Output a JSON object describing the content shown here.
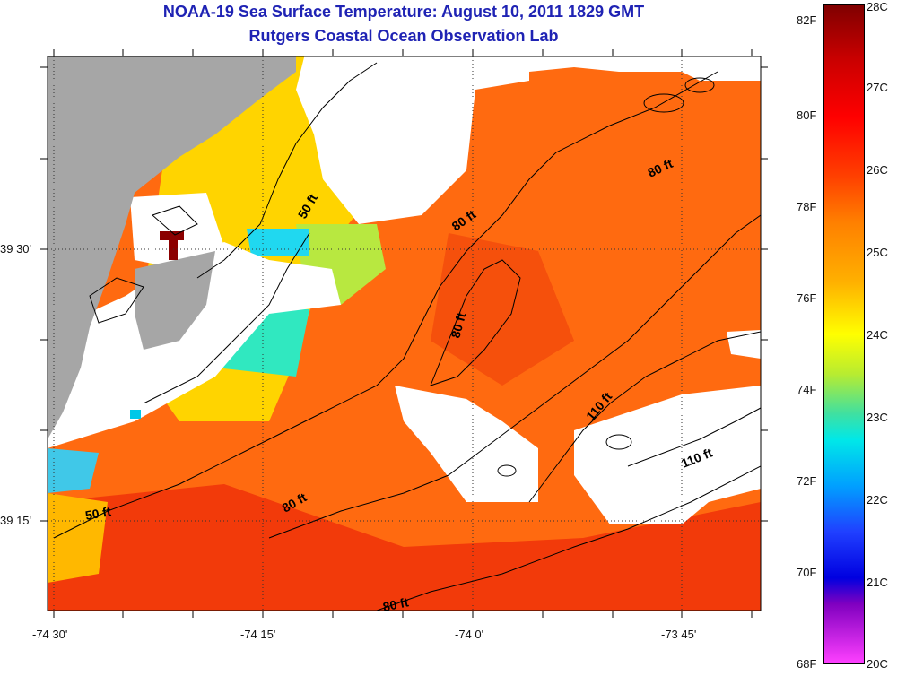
{
  "title": {
    "line1": "NOAA-19 Sea Surface Temperature:  August 10, 2011 1829 GMT",
    "line2": "Rutgers Coastal Ocean Observation Lab"
  },
  "map": {
    "lat_labels": [
      "39 30'",
      "39 15'"
    ],
    "lon_labels": [
      "-74 30'",
      "-74 15'",
      "-74 0'",
      "-73 45'"
    ],
    "contour_labels": [
      "50 ft",
      "80 ft",
      "80 ft",
      "80 ft",
      "110 ft",
      "110 ft",
      "50 ft",
      "80 ft",
      "80 ft"
    ],
    "colors": {
      "land": "#a6a6a6",
      "cloud": "#ffffff",
      "contour": "#000000"
    }
  },
  "colorbar": {
    "fahrenheit": [
      "82F",
      "80F",
      "78F",
      "76F",
      "74F",
      "72F",
      "70F",
      "68F"
    ],
    "celsius": [
      "28C",
      "27C",
      "26C",
      "25C",
      "24C",
      "23C",
      "22C",
      "21C",
      "20C"
    ]
  }
}
